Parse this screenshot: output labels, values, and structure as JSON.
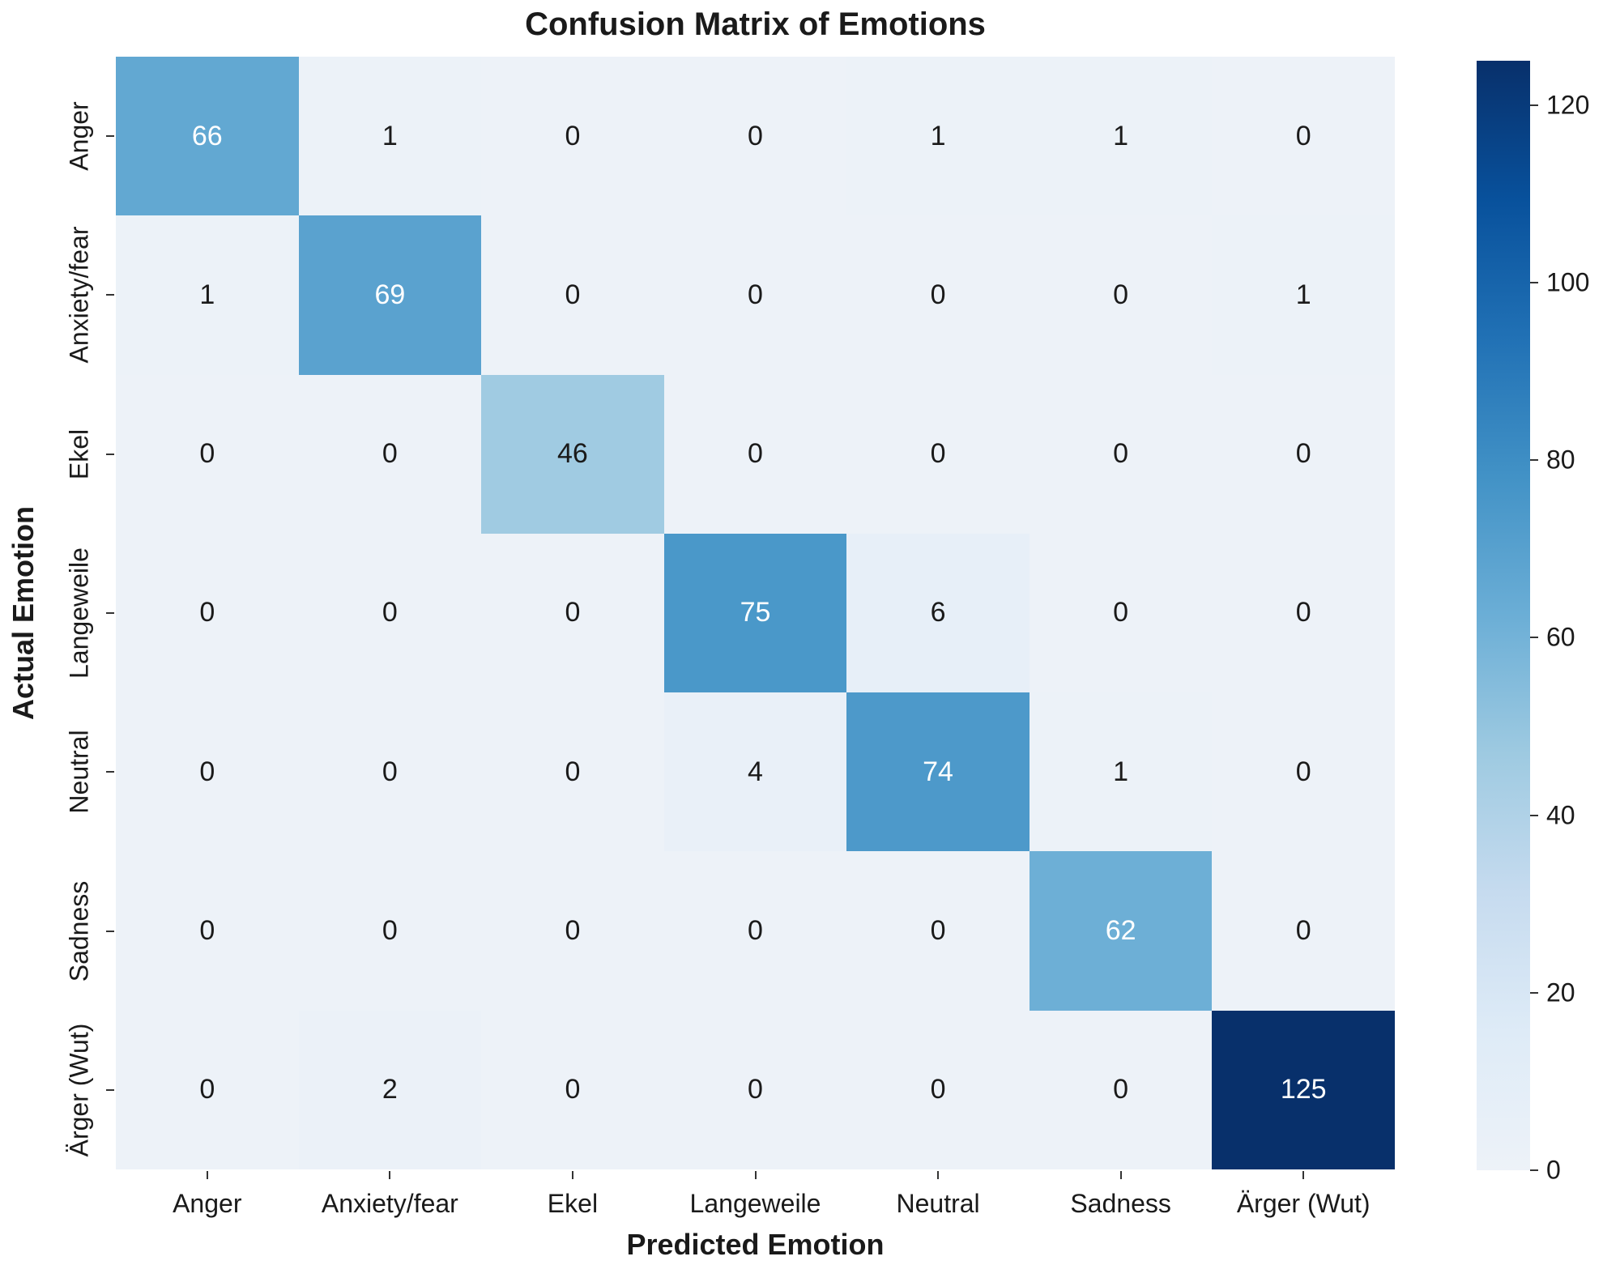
{
  "chart_data": {
    "type": "heatmap",
    "title": "Confusion Matrix of Emotions",
    "xlabel": "Predicted Emotion",
    "ylabel": "Actual Emotion",
    "x_categories": [
      "Anger",
      "Anxiety/fear",
      "Ekel",
      "Langeweile",
      "Neutral",
      "Sadness",
      "Ärger (Wut)"
    ],
    "y_categories": [
      "Anger",
      "Anxiety/fear",
      "Ekel",
      "Langeweile",
      "Neutral",
      "Sadness",
      "Ärger (Wut)"
    ],
    "matrix": [
      [
        66,
        1,
        0,
        0,
        1,
        1,
        0
      ],
      [
        1,
        69,
        0,
        0,
        0,
        0,
        1
      ],
      [
        0,
        0,
        46,
        0,
        0,
        0,
        0
      ],
      [
        0,
        0,
        0,
        75,
        6,
        0,
        0
      ],
      [
        0,
        0,
        0,
        4,
        74,
        1,
        0
      ],
      [
        0,
        0,
        0,
        0,
        0,
        62,
        0
      ],
      [
        0,
        2,
        0,
        0,
        0,
        0,
        125
      ]
    ],
    "vmin": 0,
    "vmax": 125,
    "colorbar_ticks": [
      0,
      20,
      40,
      60,
      80,
      100,
      120
    ],
    "legend_position": "right",
    "grid": false,
    "colormap": {
      "name": "Blues",
      "stops": [
        [
          0.0,
          "#edf2f8"
        ],
        [
          0.125,
          "#deebf7"
        ],
        [
          0.25,
          "#c6dbef"
        ],
        [
          0.375,
          "#9ecae1"
        ],
        [
          0.5,
          "#6baed6"
        ],
        [
          0.625,
          "#4292c6"
        ],
        [
          0.75,
          "#2171b5"
        ],
        [
          0.875,
          "#08519c"
        ],
        [
          1.0,
          "#08306b"
        ]
      ]
    },
    "text_colors": {
      "dark": "#1a1a1a",
      "light": "#ffffff"
    }
  }
}
